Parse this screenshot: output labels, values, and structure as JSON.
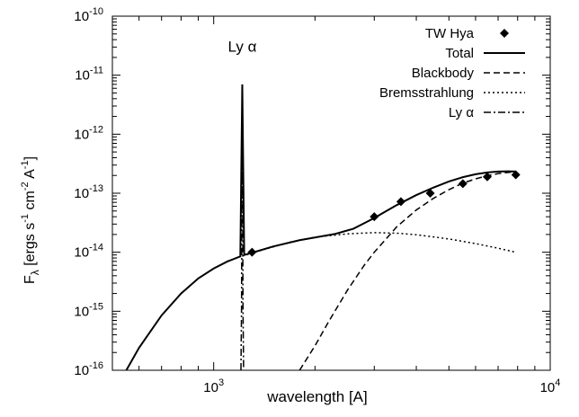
{
  "chart_data": {
    "type": "line",
    "xlabel": "wavelength [A]",
    "ylabel": {
      "main": "F",
      "main_sub": "λ",
      "unit_open": " [ergs s",
      "unit_exp1": "-1",
      "unit_mid": " cm",
      "unit_exp2": "-2",
      "unit_tail": " A",
      "unit_exp3": "-1",
      "unit_close": "]"
    },
    "x_scale": "log",
    "y_scale": "log",
    "xlim": [
      500,
      10000
    ],
    "ylim": [
      1e-16,
      1e-10
    ],
    "x_ticks": [
      {
        "value": 1000,
        "base": "10",
        "exp": "3"
      },
      {
        "value": 10000,
        "base": "10",
        "exp": "4"
      }
    ],
    "y_ticks": [
      {
        "value": 1e-10,
        "base": "10",
        "exp": "-10"
      },
      {
        "value": 1e-11,
        "base": "10",
        "exp": "-11"
      },
      {
        "value": 1e-12,
        "base": "10",
        "exp": "-12"
      },
      {
        "value": 1e-13,
        "base": "10",
        "exp": "-13"
      },
      {
        "value": 1e-14,
        "base": "10",
        "exp": "-14"
      },
      {
        "value": 1e-15,
        "base": "10",
        "exp": "-15"
      },
      {
        "value": 1e-16,
        "base": "10",
        "exp": "-16"
      }
    ],
    "grid": false,
    "legend_position": "top-right",
    "annotation": {
      "text": "Ly α",
      "x": 1216,
      "y": 2.5e-11
    },
    "series": [
      {
        "name": "TW Hya",
        "style": "diamond",
        "points": [
          [
            1300,
            1e-14
          ],
          [
            3000,
            4e-14
          ],
          [
            3600,
            7.2e-14
          ],
          [
            4400,
            1e-13
          ],
          [
            5500,
            1.45e-13
          ],
          [
            6500,
            1.9e-13
          ],
          [
            7900,
            2.05e-13
          ]
        ]
      },
      {
        "name": "Total",
        "style": "solid",
        "points": [
          [
            550,
            1e-16
          ],
          [
            600,
            2.4e-16
          ],
          [
            700,
            8.5e-16
          ],
          [
            800,
            2e-15
          ],
          [
            900,
            3.6e-15
          ],
          [
            1000,
            5.3e-15
          ],
          [
            1100,
            7e-15
          ],
          [
            1200,
            8.5e-15
          ],
          [
            1216,
            7e-12
          ],
          [
            1232,
            9e-15
          ],
          [
            1300,
            9.8e-15
          ],
          [
            1500,
            1.25e-14
          ],
          [
            1800,
            1.6e-14
          ],
          [
            2000,
            1.78e-14
          ],
          [
            2300,
            2.05e-14
          ],
          [
            2600,
            2.5e-14
          ],
          [
            2800,
            3.1e-14
          ],
          [
            3000,
            3.8e-14
          ],
          [
            3200,
            4.7e-14
          ],
          [
            3500,
            6.3e-14
          ],
          [
            4000,
            9.3e-14
          ],
          [
            4500,
            1.25e-13
          ],
          [
            5000,
            1.58e-13
          ],
          [
            5500,
            1.87e-13
          ],
          [
            6000,
            2.1e-13
          ],
          [
            6500,
            2.25e-13
          ],
          [
            7000,
            2.33e-13
          ],
          [
            7500,
            2.35e-13
          ],
          [
            7900,
            2.33e-13
          ]
        ]
      },
      {
        "name": "Blackbody",
        "style": "dashed",
        "points": [
          [
            1800,
            1e-16
          ],
          [
            2000,
            2.6e-16
          ],
          [
            2200,
            6.8e-16
          ],
          [
            2500,
            2.3e-15
          ],
          [
            2800,
            6e-15
          ],
          [
            3000,
            1e-14
          ],
          [
            3500,
            2.7e-14
          ],
          [
            4000,
            5.2e-14
          ],
          [
            4500,
            8.2e-14
          ],
          [
            5000,
            1.15e-13
          ],
          [
            5500,
            1.48e-13
          ],
          [
            6000,
            1.75e-13
          ],
          [
            6500,
            1.98e-13
          ],
          [
            7000,
            2.15e-13
          ],
          [
            7500,
            2.25e-13
          ],
          [
            7900,
            2.3e-13
          ]
        ]
      },
      {
        "name": "Bremsstrahlung",
        "style": "dotted",
        "points": [
          [
            1216,
            8.6e-15
          ],
          [
            1400,
            1.1e-14
          ],
          [
            1700,
            1.5e-14
          ],
          [
            2000,
            1.8e-14
          ],
          [
            2500,
            2.05e-14
          ],
          [
            3000,
            2.15e-14
          ],
          [
            3500,
            2.1e-14
          ],
          [
            4000,
            1.98e-14
          ],
          [
            5000,
            1.68e-14
          ],
          [
            6000,
            1.4e-14
          ],
          [
            7000,
            1.17e-14
          ],
          [
            7900,
            1e-14
          ]
        ]
      },
      {
        "name": "Ly α",
        "style": "dashdot",
        "points": [
          [
            1205,
            1e-16
          ],
          [
            1210,
            1.2e-15
          ],
          [
            1213,
            9e-14
          ],
          [
            1216,
            6.9e-12
          ],
          [
            1219,
            9e-14
          ],
          [
            1222,
            1.2e-15
          ],
          [
            1227,
            1e-16
          ]
        ]
      }
    ]
  }
}
